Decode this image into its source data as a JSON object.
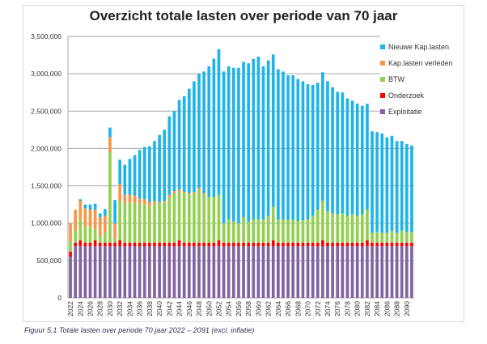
{
  "chart_data": {
    "type": "bar",
    "stacked": true,
    "title": "Overzicht totale lasten over periode van 70 jaar",
    "caption": "Figuur 5.1 Totale lasten over periode 70 jaar 2022 – 2091 (excl. inflatie)",
    "xlabel": "",
    "ylabel": "",
    "value_unit": "million",
    "ylim": [
      0,
      3.5
    ],
    "yticks": [
      0,
      0.5,
      1,
      1.5,
      2,
      2.5,
      3,
      3.5
    ],
    "ytick_labels": [
      "0",
      "500,000",
      "1,000,000",
      "1,500,000",
      "2,000,000",
      "2,500,000",
      "3,000,000",
      "3,500,000"
    ],
    "grid": true,
    "legend_position": "right",
    "x_start": 2022,
    "x_end": 2091,
    "xtick_step": 2,
    "series": [
      {
        "name": "Exploitatie",
        "color": "#8064a2",
        "values": [
          0.55,
          0.69,
          0.69,
          0.69,
          0.69,
          0.69,
          0.69,
          0.69,
          0.69,
          0.69,
          0.69,
          0.69,
          0.69,
          0.69,
          0.69,
          0.69,
          0.69,
          0.69,
          0.69,
          0.69,
          0.69,
          0.69,
          0.69,
          0.69,
          0.69,
          0.69,
          0.69,
          0.69,
          0.69,
          0.69,
          0.69,
          0.69,
          0.69,
          0.69,
          0.69,
          0.69,
          0.69,
          0.69,
          0.69,
          0.69,
          0.69,
          0.69,
          0.69,
          0.69,
          0.69,
          0.69,
          0.69,
          0.69,
          0.69,
          0.69,
          0.69,
          0.69,
          0.69,
          0.69,
          0.69,
          0.69,
          0.69,
          0.69,
          0.69,
          0.69,
          0.69,
          0.69,
          0.69,
          0.69,
          0.69,
          0.69,
          0.69,
          0.69,
          0.69,
          0.69
        ]
      },
      {
        "name": "Onderzoek",
        "color": "#ff0000",
        "values": [
          0.07,
          0.05,
          0.08,
          0.05,
          0.05,
          0.08,
          0.05,
          0.05,
          0.05,
          0.05,
          0.08,
          0.05,
          0.05,
          0.05,
          0.05,
          0.05,
          0.05,
          0.05,
          0.05,
          0.05,
          0.05,
          0.05,
          0.08,
          0.05,
          0.05,
          0.05,
          0.05,
          0.05,
          0.05,
          0.05,
          0.08,
          0.05,
          0.05,
          0.05,
          0.05,
          0.05,
          0.05,
          0.05,
          0.05,
          0.05,
          0.05,
          0.08,
          0.05,
          0.05,
          0.05,
          0.05,
          0.05,
          0.05,
          0.05,
          0.05,
          0.05,
          0.08,
          0.05,
          0.05,
          0.05,
          0.05,
          0.05,
          0.05,
          0.05,
          0.05,
          0.08,
          0.05,
          0.05,
          0.05,
          0.05,
          0.05,
          0.05,
          0.05,
          0.05,
          0.05
        ]
      },
      {
        "name": "BTW",
        "color": "#92d050",
        "values": [
          0.13,
          0.16,
          0.28,
          0.21,
          0.21,
          0.15,
          0.09,
          0.13,
          1.21,
          0.06,
          0.53,
          0.53,
          0.53,
          0.53,
          0.52,
          0.51,
          0.48,
          0.53,
          0.53,
          0.54,
          0.61,
          0.66,
          0.65,
          0.66,
          0.64,
          0.66,
          0.71,
          0.64,
          0.61,
          0.61,
          0.61,
          0.26,
          0.31,
          0.28,
          0.26,
          0.34,
          0.28,
          0.31,
          0.31,
          0.31,
          0.36,
          0.45,
          0.31,
          0.31,
          0.3,
          0.31,
          0.29,
          0.3,
          0.31,
          0.36,
          0.44,
          0.53,
          0.42,
          0.39,
          0.38,
          0.39,
          0.36,
          0.38,
          0.36,
          0.38,
          0.41,
          0.13,
          0.14,
          0.13,
          0.13,
          0.16,
          0.13,
          0.16,
          0.14,
          0.14
        ]
      },
      {
        "name": "Kap.lasten verleden",
        "color": "#f79646",
        "values": [
          0.25,
          0.28,
          0.25,
          0.25,
          0.23,
          0.26,
          0.25,
          0.23,
          0.2,
          0.2,
          0.22,
          0.11,
          0.11,
          0.1,
          0.07,
          0.07,
          0.06,
          0.03,
          0.01,
          0.02,
          0.03,
          0.03,
          0.03,
          0.02,
          0.02,
          0.02,
          0.02,
          0.02,
          0,
          0,
          0,
          0,
          0,
          0,
          0,
          0,
          0,
          0,
          0,
          0,
          0,
          0,
          0,
          0,
          0,
          0,
          0,
          0,
          0,
          0,
          0,
          0,
          0,
          0,
          0,
          0,
          0,
          0,
          0,
          0,
          0,
          0,
          0,
          0,
          0,
          0,
          0,
          0,
          0,
          0
        ]
      },
      {
        "name": "Nieuwe Kap.lasten",
        "color": "#1fb4e8",
        "values": [
          0,
          0,
          0.02,
          0.05,
          0.07,
          0.08,
          0.05,
          0.09,
          0.13,
          0.31,
          0.33,
          0.4,
          0.48,
          0.54,
          0.65,
          0.7,
          0.75,
          0.8,
          0.9,
          0.95,
          1.05,
          1.07,
          1.2,
          1.28,
          1.4,
          1.48,
          1.53,
          1.63,
          1.75,
          1.85,
          1.95,
          2.03,
          2.05,
          2.06,
          2.08,
          2.08,
          2.12,
          2.15,
          2.18,
          2.05,
          2.08,
          2.04,
          2.01,
          1.98,
          1.94,
          1.93,
          1.9,
          1.86,
          1.81,
          1.75,
          1.7,
          1.72,
          1.74,
          1.69,
          1.64,
          1.62,
          1.57,
          1.52,
          1.5,
          1.45,
          1.42,
          1.36,
          1.34,
          1.33,
          1.28,
          1.27,
          1.23,
          1.2,
          1.18,
          1.16
        ]
      }
    ],
    "legend": [
      "Nieuwe Kap.lasten",
      "Kap.lasten verleden",
      "BTW",
      "Onderzoek",
      "Exploitatie"
    ]
  }
}
